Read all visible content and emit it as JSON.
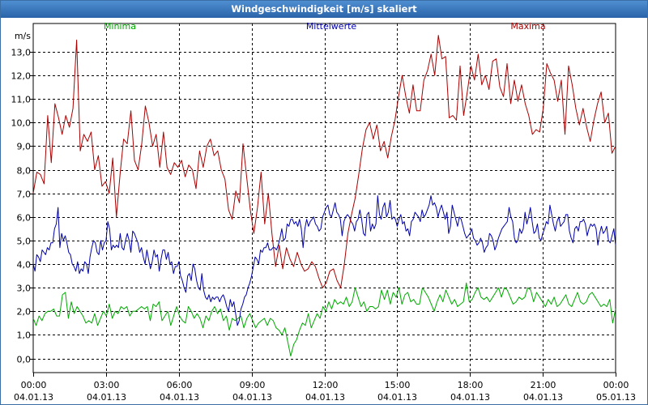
{
  "window": {
    "title": "Windgeschwindigkeit [m/s] skaliert"
  },
  "chart_data": {
    "type": "line",
    "title": "Windgeschwindigkeit [m/s] skaliert",
    "ylabel": "m/s",
    "ylim": [
      -0.6,
      14.2
    ],
    "yticks": [
      0,
      1,
      2,
      3,
      4,
      5,
      6,
      7,
      8,
      9,
      10,
      11,
      12,
      13
    ],
    "ytick_labels": [
      "0,0",
      "1,0",
      "2,0",
      "3,0",
      "4,0",
      "5,0",
      "6,0",
      "7,0",
      "8,0",
      "9,0",
      "10,0",
      "11,0",
      "12,0",
      "13,0"
    ],
    "xlim": [
      0,
      24
    ],
    "xticks": [
      {
        "h": 0,
        "time": "00:00",
        "date": "04.01.13"
      },
      {
        "h": 3,
        "time": "03:00",
        "date": "04.01.13"
      },
      {
        "h": 6,
        "time": "06:00",
        "date": "04.01.13"
      },
      {
        "h": 9,
        "time": "09:00",
        "date": "04.01.13"
      },
      {
        "h": 12,
        "time": "12:00",
        "date": "04.01.13"
      },
      {
        "h": 15,
        "time": "15:00",
        "date": "04.01.13"
      },
      {
        "h": 18,
        "time": "18:00",
        "date": "04.01.13"
      },
      {
        "h": 21,
        "time": "21:00",
        "date": "04.01.13"
      },
      {
        "h": 24,
        "time": "00:00",
        "date": "05.01.13"
      }
    ],
    "grid": true,
    "series": [
      {
        "name": "Minima",
        "color": "#00aa00",
        "values": [
          1.7,
          1.4,
          1.8,
          1.6,
          1.9,
          2.0,
          2.0,
          2.1,
          1.8,
          1.8,
          2.7,
          2.8,
          1.7,
          2.4,
          1.9,
          2.2,
          2.0,
          1.8,
          1.5,
          1.6,
          1.5,
          1.9,
          1.4,
          1.7,
          2.0,
          1.8,
          2.3,
          1.7,
          2.0,
          1.9,
          2.2,
          2.1,
          2.2,
          1.8,
          2.0,
          2.0,
          2.1,
          2.2,
          2.1,
          2.2,
          1.6,
          2.3,
          2.2,
          2.4,
          1.6,
          1.8,
          2.0,
          1.4,
          1.8,
          2.2,
          1.8,
          1.6,
          1.5,
          2.2,
          2.0,
          1.7,
          1.9,
          1.7,
          1.3,
          1.8,
          1.6,
          2.0,
          2.2,
          1.9,
          2.1,
          1.6,
          1.8,
          1.2,
          1.7,
          1.6,
          1.7,
          1.8,
          1.3,
          1.7,
          1.9,
          1.6,
          1.3,
          1.5,
          1.6,
          1.7,
          1.4,
          1.7,
          1.6,
          1.3,
          1.2,
          1.0,
          1.3,
          0.7,
          0.1,
          0.6,
          0.8,
          1.2,
          1.5,
          1.4,
          1.9,
          1.3,
          1.6,
          1.9,
          1.7,
          2.2,
          2.0,
          2.4,
          2.1,
          2.5,
          2.3,
          2.4,
          2.3,
          2.6,
          2.2,
          2.4,
          3.0,
          2.6,
          2.2,
          2.4,
          2.0,
          2.2,
          2.2,
          2.1,
          2.2,
          2.9,
          2.5,
          2.9,
          2.3,
          2.8,
          2.6,
          3.0,
          2.3,
          2.7,
          2.8,
          2.4,
          2.5,
          2.3,
          2.3,
          3.0,
          2.8,
          2.6,
          2.3,
          2.0,
          2.4,
          2.7,
          2.4,
          2.9,
          2.6,
          2.3,
          2.5,
          2.2,
          2.3,
          2.4,
          3.2,
          2.4,
          2.5,
          2.8,
          3.0,
          2.6,
          2.5,
          2.6,
          2.4,
          2.6,
          2.8,
          3.0,
          2.6,
          3.0,
          2.9,
          2.6,
          2.3,
          2.4,
          2.6,
          2.5,
          2.6,
          3.0,
          2.9,
          2.4,
          2.8,
          2.6,
          2.4,
          2.2,
          2.5,
          2.3,
          2.6,
          2.2,
          2.3,
          2.5,
          2.7,
          2.3,
          2.2,
          2.5,
          2.8,
          2.4,
          2.3,
          2.4,
          2.7,
          2.8,
          2.6,
          2.4,
          2.2,
          2.3,
          2.2,
          2.5,
          1.5,
          2.1
        ]
      },
      {
        "name": "Mittelwerte",
        "color": "#0000aa",
        "values": [
          4.0,
          3.7,
          4.4,
          4.3,
          4.1,
          4.6,
          4.5,
          4.4,
          4.7,
          4.6,
          4.9,
          4.9,
          5.5,
          5.7,
          6.4,
          4.7,
          5.3,
          5.0,
          5.2,
          4.9,
          4.5,
          4.4,
          4.0,
          3.9,
          3.7,
          4.1,
          3.6,
          3.8,
          3.7,
          4.1,
          4.0,
          3.6,
          4.3,
          4.7,
          5.0,
          4.9,
          4.5,
          4.4,
          5.0,
          4.6,
          4.9,
          5.0,
          5.8,
          5.5,
          4.6,
          4.8,
          4.7,
          4.8,
          4.7,
          5.3,
          4.7,
          4.6,
          5.0,
          5.3,
          5.0,
          4.5,
          5.4,
          5.3,
          5.1,
          4.9,
          4.5,
          4.7,
          4.3,
          4.0,
          4.6,
          4.2,
          3.8,
          4.1,
          4.6,
          4.3,
          4.4,
          3.7,
          4.2,
          4.6,
          4.6,
          4.2,
          4.5,
          4.0,
          4.1,
          3.6,
          3.9,
          3.9,
          4.1,
          3.5,
          3.3,
          3.0,
          2.8,
          3.5,
          3.6,
          3.3,
          4.0,
          3.8,
          3.3,
          3.0,
          2.9,
          3.6,
          2.9,
          2.6,
          2.5,
          2.7,
          2.4,
          2.6,
          2.5,
          2.6,
          2.6,
          2.4,
          2.6,
          2.7,
          2.5,
          2.2,
          2.0,
          2.5,
          2.2,
          2.4,
          1.9,
          1.4,
          1.6,
          2.1,
          2.3,
          2.6,
          2.7,
          3.0,
          3.2,
          3.5,
          3.9,
          4.3,
          4.2,
          4.0,
          4.6,
          4.5,
          4.7,
          4.7,
          4.9,
          4.6,
          4.6,
          4.7,
          4.7,
          4.6,
          4.8,
          5.1,
          5.5,
          5.0,
          5.1,
          5.7,
          5.6,
          5.9,
          5.9,
          5.7,
          5.8,
          5.6,
          5.9,
          5.5,
          4.7,
          5.5,
          5.9,
          5.6,
          5.8,
          5.9,
          6.0,
          5.7,
          5.6,
          5.4,
          5.5,
          6.0,
          6.2,
          6.4,
          6.5,
          6.1,
          6.0,
          6.3,
          6.6,
          6.2,
          6.1,
          5.9,
          5.2,
          5.8,
          6.0,
          6.1,
          6.0,
          5.8,
          5.7,
          5.4,
          5.8,
          5.9,
          6.3,
          5.9,
          5.3,
          5.2,
          6.1,
          6.2,
          5.4,
          5.7,
          5.5,
          5.7,
          6.9,
          6.1,
          5.9,
          6.4,
          6.6,
          6.0,
          6.2,
          6.7,
          5.9,
          6.0,
          5.9,
          5.6,
          5.9,
          6.1,
          5.7,
          5.8,
          5.4,
          5.5,
          5.2,
          5.8,
          5.9,
          6.2,
          6.1,
          6.0,
          5.8,
          6.3,
          6.0,
          6.1,
          6.3,
          6.5,
          6.9,
          6.5,
          6.6,
          6.4,
          6.0,
          6.3,
          6.5,
          6.2,
          5.9,
          6.2,
          5.3,
          5.6,
          6.5,
          6.2,
          5.9,
          5.6,
          6.0,
          5.9,
          5.6,
          5.3,
          5.1,
          5.2,
          5.3,
          5.5,
          5.1,
          5.0,
          4.8,
          4.9,
          5.1,
          4.9,
          4.5,
          4.7,
          4.8,
          5.3,
          5.2,
          5.0,
          4.6,
          4.8,
          5.1,
          5.3,
          5.5,
          5.6,
          5.7,
          5.8,
          6.4,
          6.0,
          5.8,
          5.1,
          4.9,
          5.0,
          5.5,
          5.3,
          5.5,
          6.2,
          5.7,
          6.0,
          6.4,
          5.8,
          5.3,
          5.4,
          5.7,
          5.1,
          5.0,
          5.3,
          5.5,
          5.8,
          5.7,
          6.5,
          6.1,
          5.7,
          5.4,
          5.8,
          6.0,
          5.6,
          5.7,
          5.8,
          6.1,
          6.1,
          5.4,
          5.1,
          4.9,
          5.5,
          5.6,
          5.4,
          5.8,
          5.8,
          5.9,
          5.7,
          5.2,
          5.5,
          5.7,
          5.6,
          5.7,
          5.5,
          4.8,
          5.3,
          5.6,
          5.3,
          5.4,
          5.6,
          5.0,
          4.9,
          5.2,
          5.5,
          4.8
        ]
      },
      {
        "name": "Maxima",
        "color": "#aa0000",
        "values": [
          7.0,
          7.9,
          7.8,
          7.4,
          10.3,
          8.3,
          10.8,
          10.2,
          9.5,
          10.3,
          9.8,
          10.6,
          13.5,
          8.8,
          9.5,
          9.2,
          9.6,
          8.0,
          8.6,
          7.3,
          7.5,
          7.0,
          8.5,
          6.0,
          7.8,
          9.3,
          9.1,
          10.5,
          8.4,
          8.0,
          9.1,
          10.7,
          10.0,
          9.0,
          9.5,
          8.1,
          9.6,
          8.1,
          7.8,
          8.3,
          8.1,
          8.4,
          7.7,
          8.2,
          8.0,
          7.2,
          8.8,
          8.1,
          9.0,
          9.3,
          8.6,
          8.8,
          8.0,
          7.6,
          6.3,
          5.9,
          7.1,
          6.6,
          9.1,
          7.7,
          6.3,
          5.3,
          6.4,
          7.9,
          5.7,
          7.0,
          5.3,
          3.9,
          4.8,
          3.8,
          4.7,
          4.2,
          3.9,
          4.5,
          4.0,
          3.7,
          3.8,
          4.1,
          3.9,
          3.4,
          3.0,
          3.2,
          3.7,
          3.8,
          3.3,
          3.0,
          4.0,
          5.3,
          6.1,
          6.8,
          7.8,
          8.9,
          9.7,
          10.0,
          9.3,
          9.9,
          8.8,
          9.2,
          8.5,
          9.4,
          10.1,
          11.1,
          12.0,
          11.1,
          10.4,
          11.6,
          10.5,
          10.5,
          11.8,
          12.2,
          12.9,
          12.0,
          13.7,
          12.7,
          12.8,
          10.2,
          10.3,
          10.1,
          12.4,
          10.3,
          11.3,
          12.4,
          11.8,
          12.9,
          11.6,
          12.0,
          11.4,
          12.6,
          12.7,
          11.5,
          11.1,
          12.5,
          10.8,
          11.8,
          10.9,
          11.6,
          10.8,
          10.3,
          9.5,
          9.7,
          9.6,
          10.6,
          12.5,
          12.1,
          11.8,
          10.9,
          11.8,
          9.5,
          12.4,
          11.6,
          10.6,
          9.9,
          10.6,
          9.8,
          9.2,
          10.1,
          10.8,
          11.3,
          10.0,
          10.4,
          8.7,
          9.0
        ]
      }
    ]
  }
}
